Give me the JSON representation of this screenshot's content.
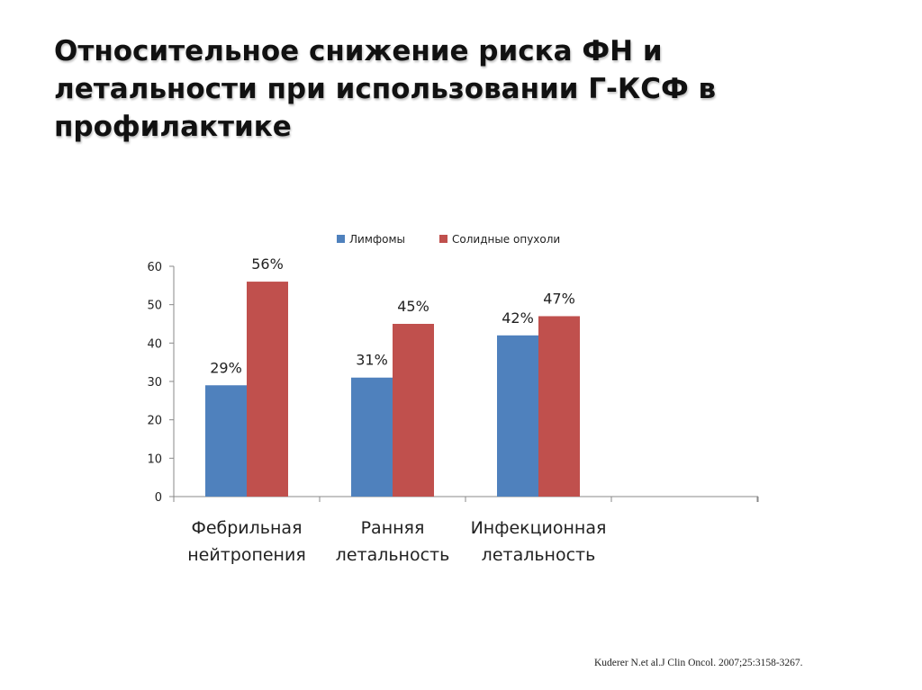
{
  "slide": {
    "title": "Относительное снижение риска ФН и летальности при использовании Г-КСФ в профилактике",
    "citation": "Kuderer N.et al.J Clin Oncol. 2007;25:3158-3267."
  },
  "chart_data": {
    "type": "bar",
    "title": "",
    "xlabel": "",
    "ylabel": "",
    "ylim": [
      0,
      60
    ],
    "yticks": [
      0,
      10,
      20,
      30,
      40,
      50,
      60
    ],
    "categories": [
      [
        "Фебрильная",
        "нейтропения"
      ],
      [
        "Ранняя",
        "летальность"
      ],
      [
        "Инфекционная",
        "летальность"
      ]
    ],
    "series": [
      {
        "name": "Лимфомы",
        "color": "#4F81BD",
        "values": [
          29,
          31,
          42
        ],
        "labels": [
          "29%",
          "31%",
          "42%"
        ]
      },
      {
        "name": "Солидные опухоли",
        "color": "#C0504D",
        "values": [
          56,
          45,
          47
        ],
        "labels": [
          "56%",
          "45%",
          "47%"
        ]
      }
    ],
    "legend_position": "top",
    "grid": false
  }
}
